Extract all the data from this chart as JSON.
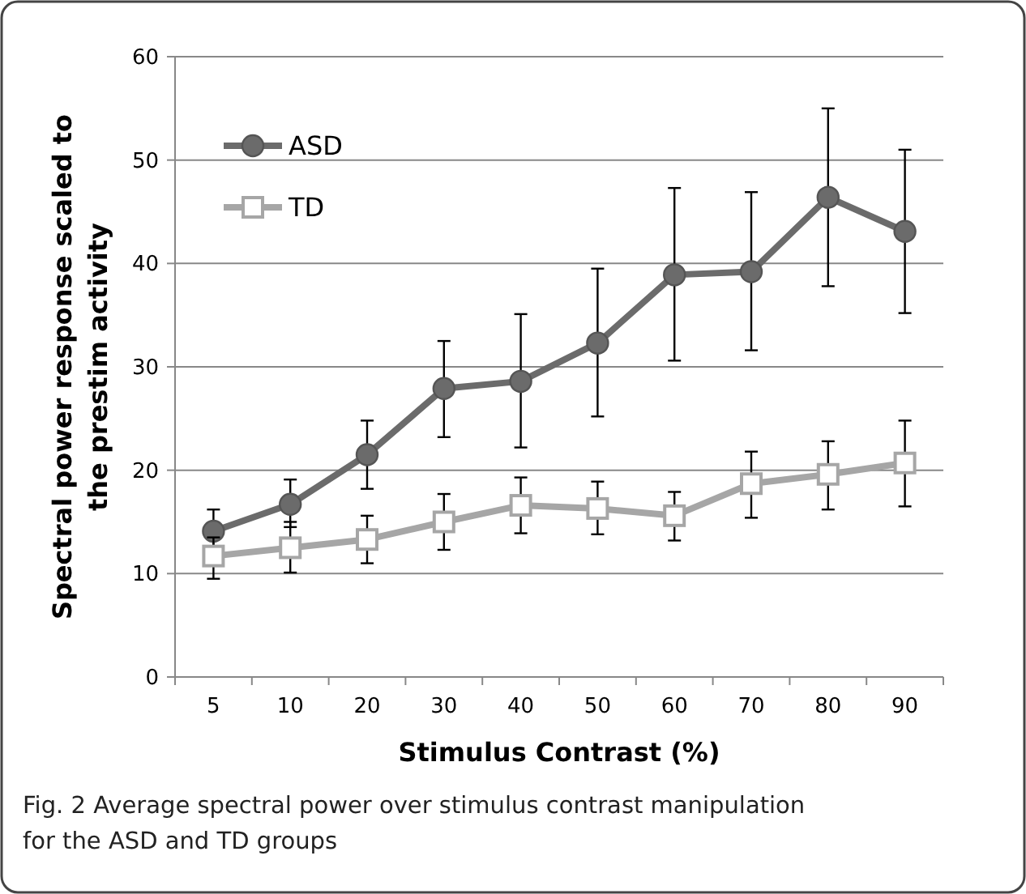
{
  "chart_data": {
    "type": "line",
    "xlabel": "Stimulus Contrast (%)",
    "ylabel": "Spectral power response scaled to the prestim activity",
    "categories": [
      "5",
      "10",
      "20",
      "30",
      "40",
      "50",
      "60",
      "70",
      "80",
      "90"
    ],
    "series": [
      {
        "name": "ASD",
        "color": "#6b6b6b",
        "marker": "circle",
        "values": [
          14.1,
          16.7,
          21.5,
          27.9,
          28.6,
          32.3,
          38.9,
          39.2,
          46.4,
          43.1
        ],
        "errors": [
          [
            12.6,
            16.2
          ],
          [
            14.5,
            19.1
          ],
          [
            18.2,
            24.8
          ],
          [
            23.2,
            32.5
          ],
          [
            22.2,
            35.1
          ],
          [
            25.2,
            39.5
          ],
          [
            30.6,
            47.3
          ],
          [
            31.6,
            46.9
          ],
          [
            37.8,
            55.0
          ],
          [
            35.2,
            51.0
          ]
        ]
      },
      {
        "name": "TD",
        "color": "#a6a6a6",
        "marker": "square",
        "values": [
          11.7,
          12.5,
          13.3,
          15.0,
          16.6,
          16.3,
          15.6,
          18.7,
          19.6,
          20.7
        ],
        "errors": [
          [
            9.5,
            13.5
          ],
          [
            10.1,
            15.0
          ],
          [
            11.0,
            15.6
          ],
          [
            12.3,
            17.7
          ],
          [
            13.9,
            19.3
          ],
          [
            13.8,
            18.9
          ],
          [
            13.2,
            17.9
          ],
          [
            15.4,
            21.8
          ],
          [
            16.2,
            22.8
          ],
          [
            16.5,
            24.8
          ]
        ]
      }
    ],
    "ylim": [
      0,
      60
    ],
    "yticks": [
      0,
      10,
      20,
      30,
      40,
      50,
      60
    ],
    "grid": "y",
    "legend": "top left",
    "annotations": [
      "Fig. 2 Average spectral power over stimulus contrast manipulation for the ASD and TD groups"
    ]
  }
}
